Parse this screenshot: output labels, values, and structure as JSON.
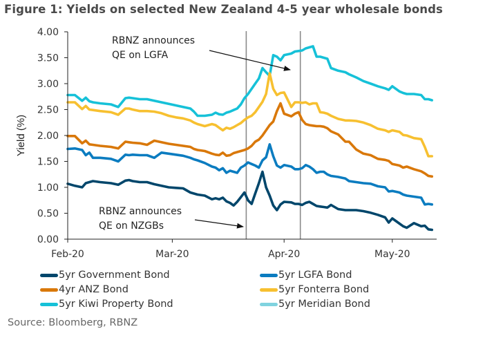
{
  "title": "Figure 1: Yields on selected New Zealand 4-5 year wholesale bonds",
  "source": "Source: Bloomberg, RBNZ",
  "chart_data": {
    "type": "line",
    "title": "Figure 1: Yields on selected New Zealand 4-5 year wholesale bonds",
    "xlabel": "",
    "ylabel": "Yield (%)",
    "ylim": [
      0,
      4
    ],
    "yticks": [
      "0.00",
      "0.50",
      "1.00",
      "1.50",
      "2.00",
      "2.50",
      "3.00",
      "3.50",
      "4.00"
    ],
    "ytick_values": [
      0,
      0.5,
      1,
      1.5,
      2,
      2.5,
      3,
      3.5,
      4
    ],
    "x_unit": "days since 2020-02-01",
    "xlim": [
      0,
      104
    ],
    "xticks": [
      {
        "label": "Feb-20",
        "x": 0
      },
      {
        "label": "Mar-20",
        "x": 29
      },
      {
        "label": "Apr-20",
        "x": 60
      },
      {
        "label": "May-20",
        "x": 90
      }
    ],
    "grid": false,
    "legend_position": "bottom",
    "x": [
      0,
      2,
      4,
      5,
      6,
      7,
      9,
      12,
      14,
      16,
      17,
      18,
      20,
      22,
      24,
      26,
      28,
      30,
      32,
      34,
      35,
      36,
      38,
      40,
      41,
      42,
      43,
      44,
      45,
      46,
      47,
      48,
      49,
      50,
      51,
      52,
      53,
      54,
      55,
      56,
      57,
      58,
      59,
      60,
      62,
      63,
      64,
      65,
      66,
      67,
      68,
      69,
      70,
      71,
      72,
      73,
      75,
      77,
      78,
      80,
      82,
      84,
      86,
      88,
      89,
      90,
      92,
      93,
      94,
      96,
      98,
      99,
      100,
      101
    ],
    "series": [
      {
        "name": "5yr Government Bond",
        "color": "#00466b",
        "values": [
          1.07,
          1.03,
          1.0,
          1.08,
          1.1,
          1.12,
          1.1,
          1.08,
          1.05,
          1.13,
          1.14,
          1.12,
          1.1,
          1.1,
          1.06,
          1.03,
          1.0,
          0.99,
          0.98,
          0.9,
          0.88,
          0.86,
          0.84,
          0.77,
          0.79,
          0.77,
          0.8,
          0.73,
          0.7,
          0.65,
          0.72,
          0.81,
          0.9,
          0.75,
          0.68,
          0.88,
          1.08,
          1.3,
          1.0,
          0.84,
          0.65,
          0.56,
          0.67,
          0.72,
          0.71,
          0.68,
          0.68,
          0.66,
          0.7,
          0.72,
          0.68,
          0.64,
          0.63,
          0.62,
          0.61,
          0.66,
          0.58,
          0.56,
          0.56,
          0.56,
          0.54,
          0.51,
          0.47,
          0.42,
          0.32,
          0.4,
          0.3,
          0.25,
          0.22,
          0.31,
          0.25,
          0.26,
          0.19,
          0.18
        ]
      },
      {
        "name": "5yr LGFA Bond",
        "color": "#0b7cc0",
        "values": [
          1.74,
          1.75,
          1.72,
          1.62,
          1.67,
          1.57,
          1.57,
          1.55,
          1.5,
          1.63,
          1.62,
          1.63,
          1.62,
          1.62,
          1.57,
          1.67,
          1.65,
          1.63,
          1.61,
          1.57,
          1.54,
          1.52,
          1.47,
          1.4,
          1.38,
          1.33,
          1.37,
          1.28,
          1.32,
          1.3,
          1.28,
          1.38,
          1.42,
          1.48,
          1.45,
          1.42,
          1.38,
          1.52,
          1.58,
          1.83,
          1.6,
          1.42,
          1.38,
          1.43,
          1.4,
          1.35,
          1.35,
          1.37,
          1.43,
          1.4,
          1.35,
          1.28,
          1.3,
          1.3,
          1.25,
          1.22,
          1.2,
          1.17,
          1.12,
          1.1,
          1.08,
          1.07,
          1.02,
          1.0,
          0.92,
          0.93,
          0.9,
          0.86,
          0.84,
          0.82,
          0.8,
          0.67,
          0.68,
          0.67
        ]
      },
      {
        "name": "4yr ANZ Bond",
        "color": "#d9780a",
        "values": [
          1.99,
          1.99,
          1.85,
          1.9,
          1.83,
          1.82,
          1.8,
          1.78,
          1.75,
          1.88,
          1.87,
          1.86,
          1.85,
          1.82,
          1.9,
          1.87,
          1.84,
          1.82,
          1.8,
          1.78,
          1.74,
          1.72,
          1.7,
          1.65,
          1.63,
          1.62,
          1.67,
          1.61,
          1.62,
          1.66,
          1.68,
          1.7,
          1.72,
          1.75,
          1.8,
          1.88,
          1.92,
          2.0,
          2.1,
          2.2,
          2.27,
          2.47,
          2.62,
          2.42,
          2.37,
          2.42,
          2.45,
          2.3,
          2.22,
          2.2,
          2.19,
          2.18,
          2.18,
          2.17,
          2.14,
          2.08,
          2.02,
          1.88,
          1.88,
          1.73,
          1.65,
          1.62,
          1.55,
          1.53,
          1.51,
          1.45,
          1.42,
          1.38,
          1.4,
          1.35,
          1.31,
          1.27,
          1.22,
          1.21
        ]
      },
      {
        "name": "5yr Fonterra Bond",
        "color": "#f7c030",
        "values": [
          2.64,
          2.64,
          2.51,
          2.57,
          2.5,
          2.49,
          2.47,
          2.45,
          2.4,
          2.52,
          2.52,
          2.5,
          2.47,
          2.47,
          2.46,
          2.43,
          2.38,
          2.35,
          2.33,
          2.29,
          2.25,
          2.22,
          2.18,
          2.22,
          2.2,
          2.15,
          2.1,
          2.15,
          2.13,
          2.16,
          2.2,
          2.24,
          2.3,
          2.35,
          2.38,
          2.45,
          2.55,
          2.65,
          2.8,
          3.2,
          2.9,
          2.78,
          2.82,
          2.83,
          2.55,
          2.64,
          2.64,
          2.63,
          2.64,
          2.6,
          2.62,
          2.62,
          2.45,
          2.44,
          2.42,
          2.38,
          2.32,
          2.29,
          2.29,
          2.28,
          2.25,
          2.2,
          2.13,
          2.1,
          2.07,
          2.1,
          2.07,
          2.01,
          2.0,
          1.95,
          1.93,
          1.78,
          1.6,
          1.6
        ]
      },
      {
        "name": "5yr Kiwi Property Bond",
        "color": "#16c1d8",
        "values": [
          2.78,
          2.78,
          2.67,
          2.73,
          2.66,
          2.64,
          2.62,
          2.6,
          2.55,
          2.72,
          2.73,
          2.72,
          2.7,
          2.7,
          2.67,
          2.64,
          2.61,
          2.58,
          2.55,
          2.52,
          2.46,
          2.38,
          2.38,
          2.4,
          2.44,
          2.41,
          2.4,
          2.44,
          2.46,
          2.49,
          2.52,
          2.6,
          2.72,
          2.8,
          2.9,
          3.0,
          3.1,
          3.3,
          3.22,
          3.15,
          3.55,
          3.52,
          3.45,
          3.55,
          3.58,
          3.62,
          3.63,
          3.64,
          3.68,
          3.7,
          3.72,
          3.52,
          3.52,
          3.5,
          3.48,
          3.3,
          3.25,
          3.22,
          3.18,
          3.12,
          3.05,
          3.0,
          2.95,
          2.91,
          2.88,
          2.95,
          2.85,
          2.82,
          2.8,
          2.8,
          2.78,
          2.7,
          2.7,
          2.68
        ]
      },
      {
        "name": "5yr Meridian Bond",
        "color": "#80d3df",
        "values": []
      }
    ],
    "annotations": [
      {
        "text_lines": [
          "RBNZ  announces",
          "QE on LGFA"
        ],
        "date_x": 64.5,
        "arrow_to": [
          61,
          3.28
        ]
      },
      {
        "text_lines": [
          "RBNZ  announces",
          "QE on NZGBs"
        ],
        "date_x": 49.5,
        "arrow_to": [
          48.5,
          0.24
        ]
      }
    ],
    "vertical_lines": [
      49.5,
      64.5
    ]
  },
  "legend": [
    {
      "label": "5yr Government Bond",
      "color": "#00466b"
    },
    {
      "label": "5yr LGFA Bond",
      "color": "#0b7cc0"
    },
    {
      "label": "4yr ANZ Bond",
      "color": "#d9780a"
    },
    {
      "label": "5yr Fonterra Bond",
      "color": "#f7c030"
    },
    {
      "label": "5yr Kiwi Property Bond",
      "color": "#16c1d8"
    },
    {
      "label": "5yr Meridian Bond",
      "color": "#80d3df"
    }
  ]
}
